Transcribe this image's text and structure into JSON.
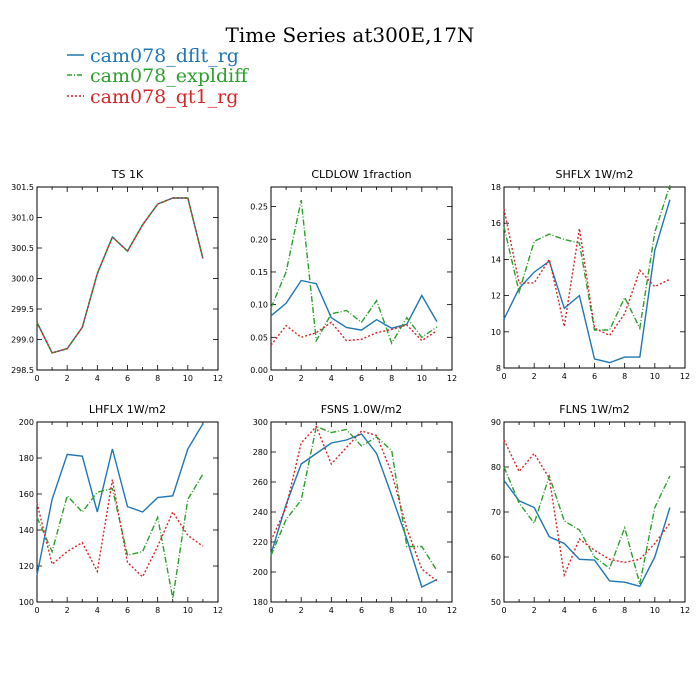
{
  "title": "Time Series at300E,17N",
  "legend": [
    {
      "label": "cam078_dflt_rg",
      "color": "#1f77b4",
      "dash": "solid"
    },
    {
      "label": "cam078_expldiff",
      "color": "#2ca02c",
      "dash": "dashdot"
    },
    {
      "label": "cam078_qt1_rg",
      "color": "#d62728",
      "dash": "dot"
    }
  ],
  "chart_data": [
    {
      "type": "line",
      "title": "TS   1K",
      "xlim": [
        0,
        12
      ],
      "xticks": [
        0,
        2,
        4,
        6,
        8,
        10,
        12
      ],
      "ylim": [
        298.5,
        301.5
      ],
      "yticks": [
        "298.5",
        "299.0",
        "299.5",
        "300.0",
        "300.5",
        "301.0",
        "301.5"
      ],
      "x": [
        0,
        1,
        2,
        3,
        4,
        5,
        6,
        7,
        8,
        9,
        10,
        11
      ],
      "series": [
        {
          "name": "cam078_dflt_rg",
          "values": [
            299.28,
            298.78,
            298.85,
            299.2,
            300.08,
            300.68,
            300.45,
            300.88,
            301.22,
            301.32,
            301.32,
            300.33
          ]
        },
        {
          "name": "cam078_expldiff",
          "values": [
            299.28,
            298.78,
            298.85,
            299.2,
            300.08,
            300.68,
            300.45,
            300.88,
            301.22,
            301.32,
            301.32,
            300.33
          ]
        },
        {
          "name": "cam078_qt1_rg",
          "values": [
            299.28,
            298.78,
            298.85,
            299.2,
            300.08,
            300.68,
            300.45,
            300.88,
            301.22,
            301.32,
            301.32,
            300.33
          ]
        }
      ]
    },
    {
      "type": "line",
      "title": "CLDLOW   1fraction",
      "xlim": [
        0,
        12
      ],
      "xticks": [
        0,
        2,
        4,
        6,
        8,
        10,
        12
      ],
      "ylim": [
        0,
        0.28
      ],
      "yticks": [
        "0.00",
        "0.05",
        "0.10",
        "0.15",
        "0.20",
        "0.25"
      ],
      "x": [
        0,
        1,
        2,
        3,
        4,
        5,
        6,
        7,
        8,
        9,
        10,
        11
      ],
      "series": [
        {
          "name": "cam078_dflt_rg",
          "values": [
            0.083,
            0.102,
            0.137,
            0.132,
            0.08,
            0.065,
            0.061,
            0.077,
            0.064,
            0.07,
            0.114,
            0.074
          ]
        },
        {
          "name": "cam078_expldiff",
          "values": [
            0.095,
            0.15,
            0.26,
            0.045,
            0.086,
            0.091,
            0.073,
            0.106,
            0.041,
            0.08,
            0.05,
            0.066
          ]
        },
        {
          "name": "cam078_qt1_rg",
          "values": [
            0.038,
            0.068,
            0.05,
            0.057,
            0.073,
            0.045,
            0.047,
            0.057,
            0.062,
            0.069,
            0.045,
            0.06
          ]
        }
      ]
    },
    {
      "type": "line",
      "title": "SHFLX   1W/m2",
      "xlim": [
        0,
        12
      ],
      "xticks": [
        0,
        2,
        4,
        6,
        8,
        10,
        12
      ],
      "ylim": [
        8,
        18
      ],
      "yticks": [
        "8",
        "10",
        "12",
        "14",
        "16",
        "18"
      ],
      "x": [
        0,
        1,
        2,
        3,
        4,
        5,
        6,
        7,
        8,
        9,
        10,
        11
      ],
      "series": [
        {
          "name": "cam078_dflt_rg",
          "values": [
            10.7,
            12.4,
            13.3,
            13.9,
            11.3,
            12.0,
            8.5,
            8.3,
            8.6,
            8.6,
            14.5,
            17.3
          ]
        },
        {
          "name": "cam078_expldiff",
          "values": [
            15.8,
            12.2,
            15.0,
            15.4,
            15.1,
            14.9,
            10.1,
            10.1,
            11.9,
            10.2,
            15.5,
            18.1
          ]
        },
        {
          "name": "cam078_qt1_rg",
          "values": [
            16.8,
            12.7,
            12.7,
            14.0,
            10.3,
            15.7,
            10.2,
            9.8,
            11.0,
            13.4,
            12.5,
            12.9
          ]
        }
      ]
    },
    {
      "type": "line",
      "title": "LHFLX   1W/m2",
      "xlim": [
        0,
        12
      ],
      "xticks": [
        0,
        2,
        4,
        6,
        8,
        10,
        12
      ],
      "ylim": [
        100,
        200
      ],
      "yticks": [
        "100",
        "120",
        "140",
        "160",
        "180",
        "200"
      ],
      "x": [
        0,
        1,
        2,
        3,
        4,
        5,
        6,
        7,
        8,
        9,
        10,
        11
      ],
      "series": [
        {
          "name": "cam078_dflt_rg",
          "values": [
            115,
            157,
            182,
            181,
            150,
            185,
            153,
            150,
            158,
            159,
            185,
            199
          ]
        },
        {
          "name": "cam078_expldiff",
          "values": [
            147,
            128,
            159,
            150,
            161,
            163,
            126,
            128,
            147,
            102,
            157,
            171
          ]
        },
        {
          "name": "cam078_qt1_rg",
          "values": [
            155,
            121,
            128,
            133,
            117,
            168,
            122,
            114,
            131,
            150,
            137,
            131
          ]
        }
      ]
    },
    {
      "type": "line",
      "title": "FSNS   1.0W/m2",
      "xlim": [
        0,
        12
      ],
      "xticks": [
        0,
        2,
        4,
        6,
        8,
        10,
        12
      ],
      "ylim": [
        180,
        300
      ],
      "yticks": [
        "180",
        "200",
        "220",
        "240",
        "260",
        "280",
        "300"
      ],
      "x": [
        0,
        1,
        2,
        3,
        4,
        5,
        6,
        7,
        8,
        9,
        10,
        11
      ],
      "series": [
        {
          "name": "cam078_dflt_rg",
          "values": [
            212,
            245,
            272,
            279,
            286,
            288,
            292,
            279,
            251,
            222,
            190,
            195
          ]
        },
        {
          "name": "cam078_expldiff",
          "values": [
            211,
            235,
            248,
            297,
            293,
            295,
            284,
            290,
            281,
            217,
            217,
            201
          ]
        },
        {
          "name": "cam078_qt1_rg",
          "values": [
            221,
            243,
            286,
            297,
            272,
            283,
            294,
            291,
            266,
            229,
            202,
            194
          ]
        }
      ]
    },
    {
      "type": "line",
      "title": "FLNS   1W/m2",
      "xlim": [
        0,
        12
      ],
      "xticks": [
        0,
        2,
        4,
        6,
        8,
        10,
        12
      ],
      "ylim": [
        50,
        90
      ],
      "yticks": [
        "50",
        "60",
        "70",
        "80",
        "90"
      ],
      "x": [
        0,
        1,
        2,
        3,
        4,
        5,
        6,
        7,
        8,
        9,
        10,
        11
      ],
      "series": [
        {
          "name": "cam078_dflt_rg",
          "values": [
            77,
            72.5,
            71,
            64.5,
            63,
            59.5,
            59.3,
            54.7,
            54.4,
            53.5,
            60,
            71
          ]
        },
        {
          "name": "cam078_expldiff",
          "values": [
            80,
            72,
            67.5,
            78,
            68,
            66,
            60,
            57.5,
            66.5,
            54,
            71,
            78
          ]
        },
        {
          "name": "cam078_qt1_rg",
          "values": [
            86,
            79,
            83,
            77.5,
            56,
            64,
            61.5,
            59.5,
            58.8,
            59.5,
            63,
            67.5
          ]
        }
      ]
    }
  ]
}
